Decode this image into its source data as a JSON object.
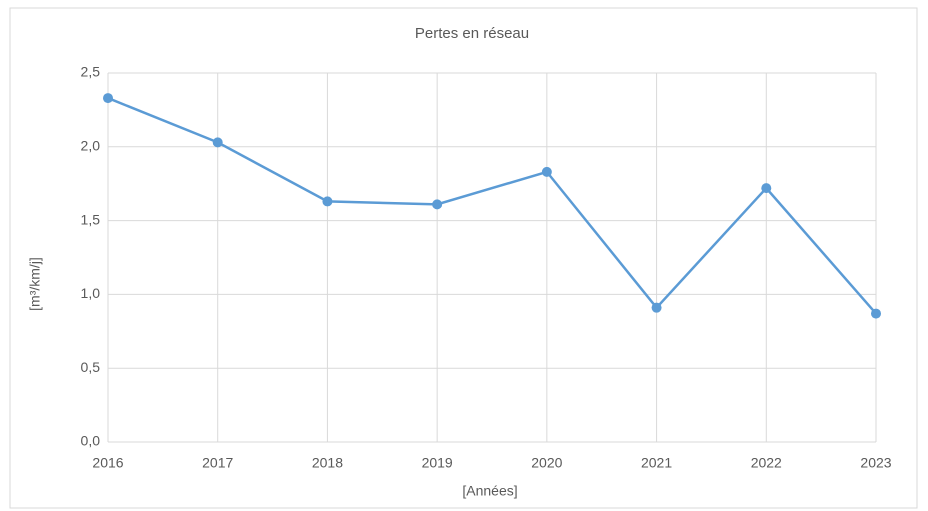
{
  "chart_data": {
    "type": "line",
    "title": "Pertes en réseau",
    "x_label": "[Années]",
    "y_label": "[m³/km/j]",
    "x": [
      2016,
      2017,
      2018,
      2019,
      2020,
      2021,
      2022,
      2023
    ],
    "values": [
      2.33,
      2.03,
      1.63,
      1.61,
      1.83,
      0.91,
      1.72,
      0.87
    ],
    "color": "#5b9bd5",
    "xlim": [
      2016,
      2023
    ],
    "xticks": [
      2016,
      2017,
      2018,
      2019,
      2020,
      2021,
      2022,
      2023
    ],
    "ylim": [
      0,
      2.5
    ],
    "yticks": [
      {
        "value": 0,
        "label": "0,0"
      },
      {
        "value": 0.5,
        "label": "0,5"
      },
      {
        "value": 1,
        "label": "1,0"
      },
      {
        "value": 1.5,
        "label": "1,5"
      },
      {
        "value": 2,
        "label": "2,0"
      },
      {
        "value": 2.5,
        "label": "2,5"
      }
    ],
    "grid": true
  }
}
